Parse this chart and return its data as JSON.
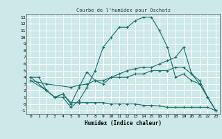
{
  "title": "Courbe de l'humidex pour Oschatz",
  "xlabel": "Humidex (Indice chaleur)",
  "bg_color": "#cce8e8",
  "grid_color": "#ffffff",
  "line_color": "#1a6e6a",
  "xlim": [
    -0.5,
    23.5
  ],
  "ylim": [
    -1.5,
    13.5
  ],
  "xticks": [
    0,
    1,
    2,
    3,
    4,
    5,
    6,
    7,
    8,
    9,
    10,
    11,
    12,
    13,
    14,
    15,
    16,
    17,
    18,
    19,
    20,
    21,
    22,
    23
  ],
  "yticks": [
    -1,
    0,
    1,
    2,
    3,
    4,
    5,
    6,
    7,
    8,
    9,
    10,
    11,
    12,
    13
  ],
  "line1_x": [
    0,
    1,
    2,
    3,
    4,
    5,
    6,
    7,
    8,
    9,
    10,
    11,
    12,
    13,
    14,
    15,
    16,
    17,
    18,
    19,
    20,
    21,
    22,
    23
  ],
  "line1_y": [
    4,
    4,
    2,
    1,
    1,
    -0.5,
    0.5,
    2.5,
    5,
    8.5,
    10,
    11.5,
    11.5,
    12.5,
    13,
    13,
    11,
    8.5,
    4,
    4.5,
    3.5,
    3,
    1,
    -1
  ],
  "line2_x": [
    0,
    2,
    3,
    4,
    5,
    6,
    7,
    8,
    9,
    10,
    11,
    12,
    13,
    14,
    15,
    16,
    17,
    18,
    19,
    20,
    21,
    22,
    23
  ],
  "line2_y": [
    4,
    2,
    1,
    1.5,
    0,
    2.5,
    4.8,
    3.5,
    3,
    4,
    4.5,
    5,
    5.3,
    5.5,
    5.5,
    6,
    6.5,
    7,
    8.5,
    4.5,
    3.5,
    1,
    -1
  ],
  "line3_x": [
    0,
    2,
    5,
    6,
    7,
    8,
    9,
    10,
    11,
    12,
    13,
    14,
    15,
    16,
    17,
    18,
    19,
    20,
    21,
    22,
    23
  ],
  "line3_y": [
    3.5,
    3,
    2.5,
    2.8,
    3,
    3.5,
    3.5,
    4,
    4,
    4,
    4.5,
    4.5,
    5,
    5,
    5,
    5.5,
    5.5,
    4.5,
    3,
    1,
    -1
  ],
  "line4_x": [
    0,
    2,
    3,
    4,
    5,
    6,
    7,
    8,
    9,
    10,
    11,
    12,
    13,
    14,
    15,
    16,
    17,
    18,
    19,
    20,
    21,
    22,
    23
  ],
  "line4_y": [
    3.5,
    2,
    1,
    1.5,
    0.2,
    0.2,
    0.2,
    0.2,
    0.2,
    0,
    0,
    0,
    0,
    -0.2,
    -0.2,
    -0.3,
    -0.5,
    -0.5,
    -0.5,
    -0.5,
    -0.5,
    -0.5,
    -1
  ]
}
